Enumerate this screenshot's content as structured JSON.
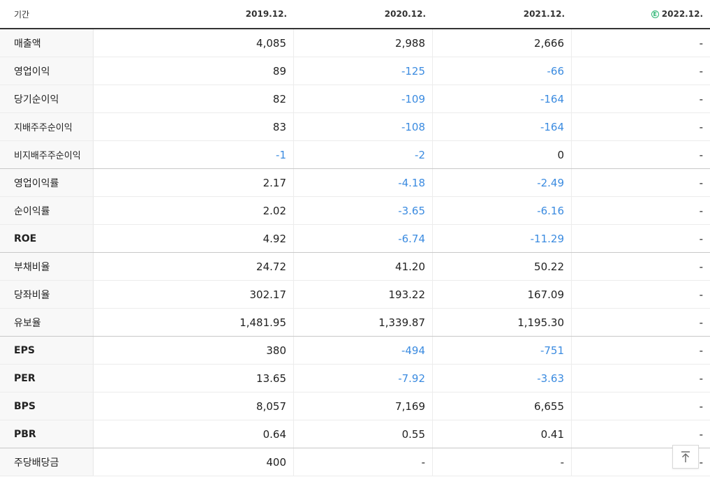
{
  "header": {
    "label": "기간",
    "periods": [
      "2019.12.",
      "2020.12.",
      "2021.12.",
      "2022.12."
    ],
    "estimate_icon": "E"
  },
  "rows": [
    {
      "label": "매출액",
      "values": [
        "4,085",
        "2,988",
        "2,666",
        "-"
      ]
    },
    {
      "label": "영업이익",
      "values": [
        "89",
        "-125",
        "-66",
        "-"
      ]
    },
    {
      "label": "당기순이익",
      "values": [
        "82",
        "-109",
        "-164",
        "-"
      ]
    },
    {
      "label": "지배주주순이익",
      "values": [
        "83",
        "-108",
        "-164",
        "-"
      ]
    },
    {
      "label": "비지배주주순이익",
      "values": [
        "-1",
        "-2",
        "0",
        "-"
      ]
    },
    {
      "label": "영업이익률",
      "values": [
        "2.17",
        "-4.18",
        "-2.49",
        "-"
      ]
    },
    {
      "label": "순이익률",
      "values": [
        "2.02",
        "-3.65",
        "-6.16",
        "-"
      ]
    },
    {
      "label": "ROE",
      "values": [
        "4.92",
        "-6.74",
        "-11.29",
        "-"
      ]
    },
    {
      "label": "부채비율",
      "values": [
        "24.72",
        "41.20",
        "50.22",
        "-"
      ]
    },
    {
      "label": "당좌비율",
      "values": [
        "302.17",
        "193.22",
        "167.09",
        "-"
      ]
    },
    {
      "label": "유보율",
      "values": [
        "1,481.95",
        "1,339.87",
        "1,195.30",
        "-"
      ]
    },
    {
      "label": "EPS",
      "values": [
        "380",
        "-494",
        "-751",
        "-"
      ]
    },
    {
      "label": "PER",
      "values": [
        "13.65",
        "-7.92",
        "-3.63",
        "-"
      ]
    },
    {
      "label": "BPS",
      "values": [
        "8,057",
        "7,169",
        "6,655",
        "-"
      ]
    },
    {
      "label": "PBR",
      "values": [
        "0.64",
        "0.55",
        "0.41",
        "-"
      ]
    },
    {
      "label": "주당배당금",
      "values": [
        "400",
        "-",
        "-",
        "-"
      ]
    }
  ],
  "colors": {
    "negative": "#3b8be0",
    "estimate": "#2bb673"
  },
  "icons": {
    "scroll_top": "arrow-up-to-top-icon"
  }
}
